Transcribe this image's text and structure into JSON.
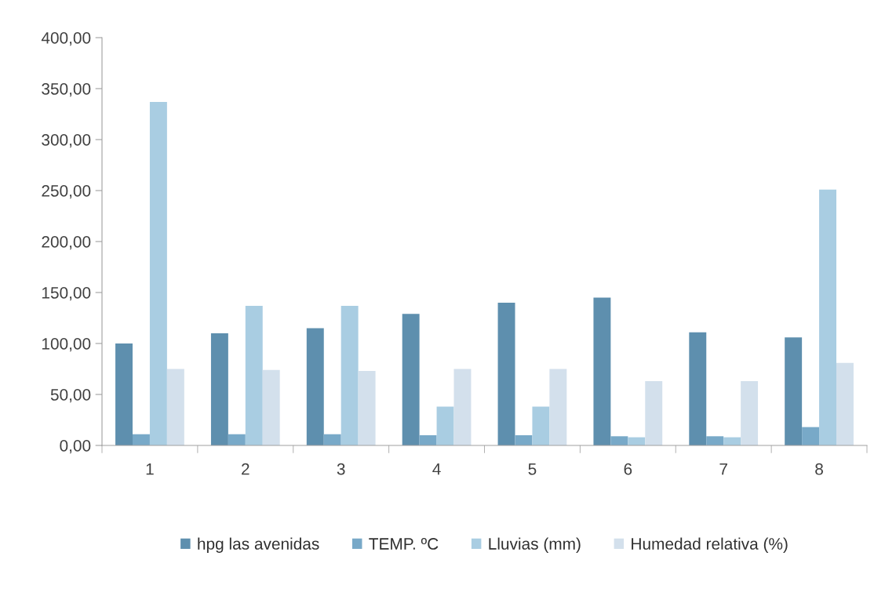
{
  "chart_data": {
    "type": "bar",
    "categories": [
      "1",
      "2",
      "3",
      "4",
      "5",
      "6",
      "7",
      "8"
    ],
    "series": [
      {
        "name": "hpg las avenidas",
        "color": "#5e8fae",
        "values": [
          100,
          110,
          115,
          129,
          140,
          145,
          111,
          106
        ]
      },
      {
        "name": "TEMP. ºC",
        "color": "#78a9c8",
        "values": [
          11,
          11,
          11,
          10,
          10,
          9,
          9,
          18
        ]
      },
      {
        "name": "Lluvias (mm)",
        "color": "#a9cde2",
        "values": [
          337,
          137,
          137,
          38,
          38,
          8,
          8,
          251
        ]
      },
      {
        "name": "Humedad relativa (%)",
        "color": "#d3e0ec",
        "values": [
          75,
          74,
          73,
          75,
          75,
          63,
          63,
          81
        ]
      }
    ],
    "ylim": [
      0,
      400
    ],
    "yticks": [
      {
        "value": 0,
        "label": "0,00"
      },
      {
        "value": 50,
        "label": "50,00"
      },
      {
        "value": 100,
        "label": "100,00"
      },
      {
        "value": 150,
        "label": "150,00"
      },
      {
        "value": 200,
        "label": "200,00"
      },
      {
        "value": 250,
        "label": "250,00"
      },
      {
        "value": 300,
        "label": "300,00"
      },
      {
        "value": 350,
        "label": "350,00"
      },
      {
        "value": 400,
        "label": "400,00"
      }
    ],
    "grid": false,
    "legend": "bottom"
  }
}
